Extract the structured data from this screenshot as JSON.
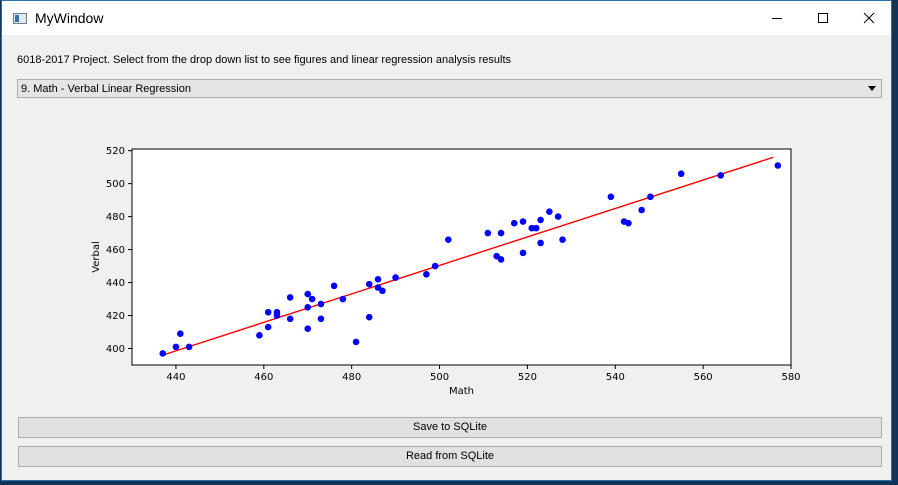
{
  "window": {
    "title": "MyWindow",
    "icons": {
      "minimize": "minimize-icon",
      "maximize": "maximize-icon",
      "close": "close-icon"
    }
  },
  "description": "6018-2017 Project. Select from the drop down list to see figures and linear regression analysis results",
  "dropdown": {
    "selected": "9. Math - Verbal Linear Regression"
  },
  "buttons": {
    "save": "Save to SQLite",
    "read": "Read from SQLite"
  },
  "chart_data": {
    "type": "scatter",
    "title": "",
    "xlabel": "Math",
    "ylabel": "Verbal",
    "xlim": [
      430,
      580
    ],
    "ylim": [
      390,
      521
    ],
    "xticks": [
      440,
      460,
      480,
      500,
      520,
      540,
      560,
      580
    ],
    "yticks": [
      400,
      420,
      440,
      460,
      480,
      500,
      520
    ],
    "point_color": "#0000ff",
    "line_color": "#ff0000",
    "points": [
      [
        437,
        397
      ],
      [
        440,
        401
      ],
      [
        441,
        409
      ],
      [
        443,
        401
      ],
      [
        459,
        408
      ],
      [
        461,
        422
      ],
      [
        461,
        413
      ],
      [
        463,
        420
      ],
      [
        463,
        422
      ],
      [
        466,
        431
      ],
      [
        466,
        418
      ],
      [
        470,
        433
      ],
      [
        470,
        425
      ],
      [
        470,
        412
      ],
      [
        471,
        430
      ],
      [
        473,
        427
      ],
      [
        473,
        418
      ],
      [
        476,
        438
      ],
      [
        478,
        430
      ],
      [
        481,
        404
      ],
      [
        484,
        439
      ],
      [
        484,
        419
      ],
      [
        486,
        442
      ],
      [
        486,
        437
      ],
      [
        487,
        435
      ],
      [
        490,
        443
      ],
      [
        497,
        445
      ],
      [
        499,
        450
      ],
      [
        502,
        466
      ],
      [
        511,
        470
      ],
      [
        513,
        456
      ],
      [
        514,
        454
      ],
      [
        514,
        470
      ],
      [
        517,
        476
      ],
      [
        519,
        477
      ],
      [
        519,
        458
      ],
      [
        521,
        473
      ],
      [
        522,
        473
      ],
      [
        523,
        478
      ],
      [
        523,
        464
      ],
      [
        525,
        483
      ],
      [
        527,
        480
      ],
      [
        528,
        466
      ],
      [
        539,
        492
      ],
      [
        542,
        477
      ],
      [
        543,
        476
      ],
      [
        546,
        484
      ],
      [
        548,
        492
      ],
      [
        555,
        506
      ],
      [
        564,
        505
      ],
      [
        577,
        511
      ]
    ],
    "regression_line": {
      "x": [
        437,
        576
      ],
      "y": [
        396,
        516
      ]
    }
  }
}
